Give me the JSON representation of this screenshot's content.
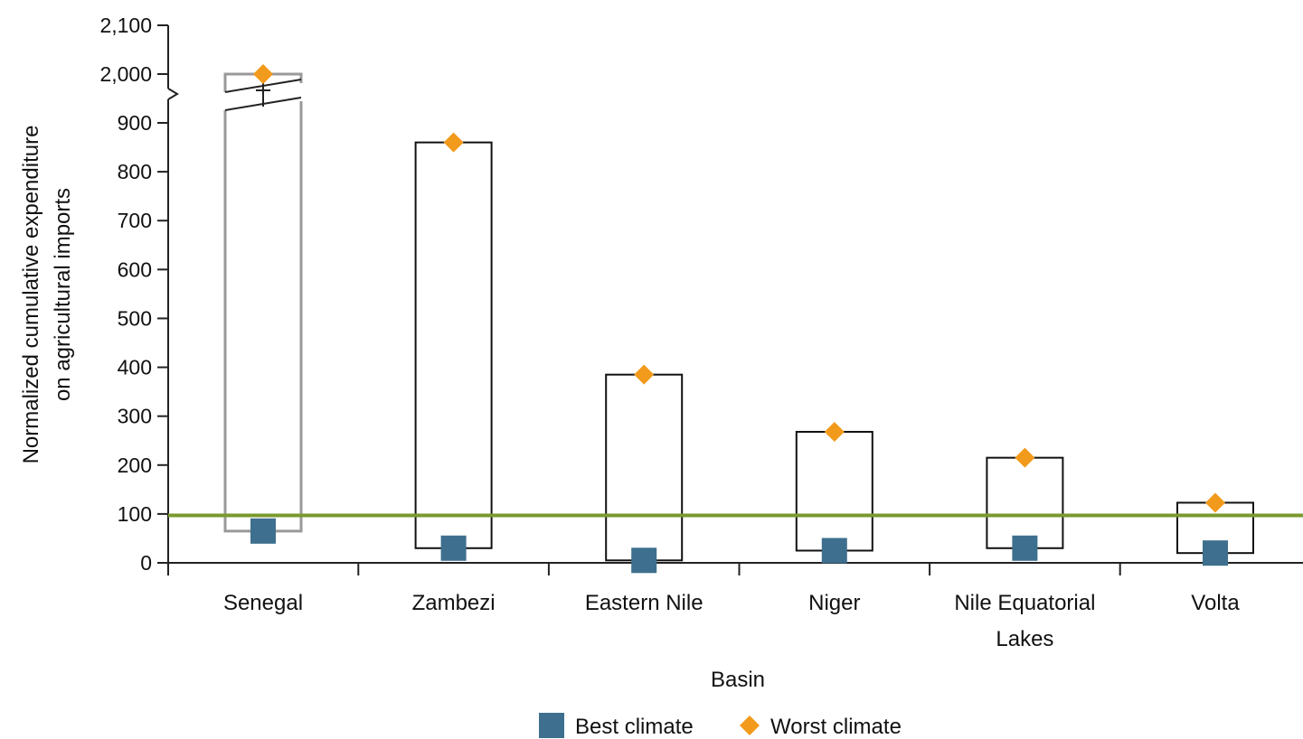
{
  "chart_data": {
    "type": "floating-range",
    "categories": [
      "Senegal",
      "Zambezi",
      "Eastern Nile",
      "Niger",
      "Nile Equatorial Lakes",
      "Volta"
    ],
    "category_labels": [
      [
        "Senegal"
      ],
      [
        "Zambezi"
      ],
      [
        "Eastern Nile"
      ],
      [
        "Niger"
      ],
      [
        "Nile Equatorial",
        "Lakes"
      ],
      [
        "Volta"
      ]
    ],
    "series": [
      {
        "name": "Best climate",
        "marker": "square",
        "color": "#3e6f8e",
        "values": [
          65,
          30,
          5,
          25,
          30,
          20
        ]
      },
      {
        "name": "Worst climate",
        "marker": "diamond",
        "color": "#f29a1b",
        "values": [
          2000,
          860,
          385,
          268,
          215,
          123
        ]
      }
    ],
    "range_boxes": {
      "low": "Best climate",
      "high": "Worst climate"
    },
    "reference_line": {
      "value": 97,
      "color": "#7a9a2e"
    },
    "axis_break": {
      "from": 975,
      "to": 1975
    },
    "xlabel": "Basin",
    "ylabel_lines": [
      "Normalized cumulative expenditure",
      "on agricultural imports"
    ],
    "ylim": [
      0,
      2100
    ],
    "yticks": [
      0,
      100,
      200,
      300,
      400,
      500,
      600,
      700,
      800,
      900,
      2000,
      2100
    ],
    "ytick_labels": [
      "0",
      "100",
      "200",
      "300",
      "400",
      "500",
      "600",
      "700",
      "800",
      "900",
      "2,000",
      "2,100"
    ],
    "legend_position": "bottom",
    "grid": false,
    "box_colors": {
      "broken": "#999999",
      "normal": "#111111"
    }
  }
}
